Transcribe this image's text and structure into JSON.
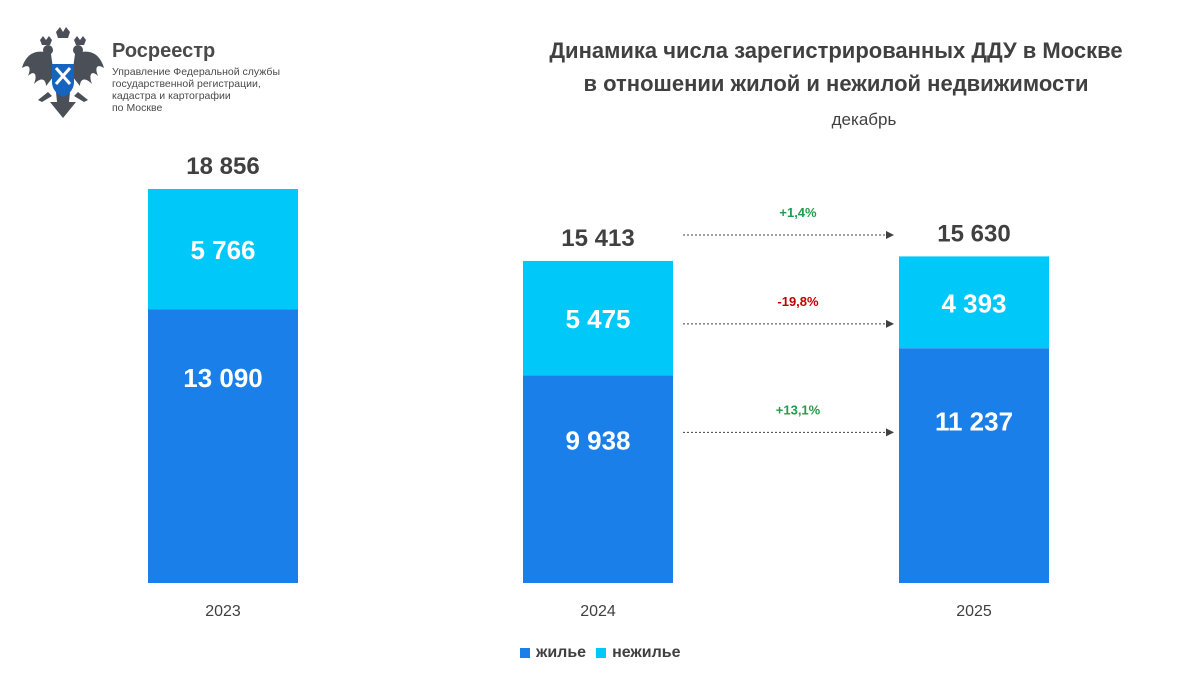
{
  "header": {
    "org_name": "Росреестр",
    "org_sub": [
      "Управление Федеральной службы",
      "государственной регистрации,",
      "кадастра и картографии",
      "по Москве"
    ]
  },
  "colors": {
    "residential": "#1a7fe8",
    "non_residential": "#00c8f8",
    "positive": "#1f9e4a",
    "negative": "#c00000",
    "text": "#404040",
    "logo_blue": "#1565c0"
  },
  "chart_data": {
    "type": "stacked_bar",
    "title": "Динамика числа зарегистрированных ДДУ в Москве в отношении жилой и нежилой недвижимости",
    "title_lines": [
      "Динамика числа зарегистрированных ДДУ в Москве",
      "в отношении жилой и нежилой недвижимости"
    ],
    "subtitle": "декабрь",
    "categories": [
      "2023",
      "2024",
      "2025"
    ],
    "series": [
      {
        "name": "жилье",
        "values": [
          13090,
          9938,
          11237
        ]
      },
      {
        "name": "нежилье",
        "values": [
          5766,
          5475,
          4393
        ]
      }
    ],
    "totals": [
      18856,
      15413,
      15630
    ],
    "value_labels": {
      "residential": [
        "13 090",
        "9 938",
        "11 237"
      ],
      "non_residential": [
        "5 766",
        "5 475",
        "4 393"
      ],
      "totals": [
        "18 856",
        "15 413",
        "15 630"
      ]
    },
    "changes": [
      {
        "target": "total",
        "label": "+1,4%",
        "sign": "positive"
      },
      {
        "target": "non_residential",
        "label": "-19,8%",
        "sign": "negative"
      },
      {
        "target": "residential",
        "label": "+13,1%",
        "sign": "positive"
      }
    ],
    "legend": [
      "жилье",
      "нежилье"
    ],
    "legend_position": "bottom-center",
    "ylim": [
      0,
      20000
    ],
    "grid": false
  }
}
